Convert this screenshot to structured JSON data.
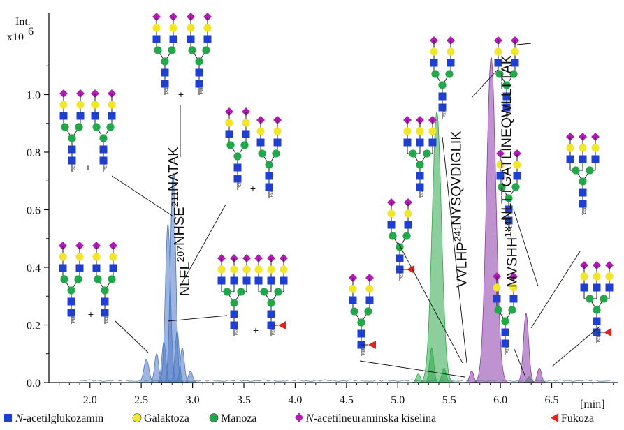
{
  "chart_data": {
    "type": "area",
    "ylabel_line1": "Int.",
    "ylabel_line2": "x10",
    "ylabel_exp": "6",
    "xunit": "[min]",
    "xlim": [
      1.6,
      7.15
    ],
    "ylim": [
      0,
      1.28
    ],
    "xticks": [
      2.0,
      2.5,
      3.0,
      3.5,
      4.0,
      4.5,
      5.0,
      5.5,
      6.0,
      6.5
    ],
    "xtick_labels": [
      "2.0",
      "2.5",
      "3.0",
      "3.5",
      "4.0",
      "4.5",
      "5.0",
      "5.5",
      "6.0",
      "6.5"
    ],
    "yticks": [
      0.0,
      0.2,
      0.4,
      0.6,
      0.8,
      1.0
    ],
    "ytick_labels": [
      "0.0",
      "0.2",
      "0.4",
      "0.6",
      "0.8",
      "1.0"
    ],
    "series": [
      {
        "color": "#4f78c4",
        "peaks": [
          {
            "rt": 2.76,
            "height": 0.55,
            "width": 0.025
          },
          {
            "rt": 2.81,
            "height": 0.73,
            "width": 0.025
          },
          {
            "rt": 2.72,
            "height": 0.14,
            "width": 0.02
          },
          {
            "rt": 2.65,
            "height": 0.1,
            "width": 0.02
          },
          {
            "rt": 2.55,
            "height": 0.08,
            "width": 0.025
          },
          {
            "rt": 2.85,
            "height": 0.18,
            "width": 0.02
          },
          {
            "rt": 2.9,
            "height": 0.12,
            "width": 0.02
          },
          {
            "rt": 2.98,
            "height": 0.04,
            "width": 0.02
          }
        ]
      },
      {
        "color": "#2ea84a",
        "peaks": [
          {
            "rt": 5.38,
            "height": 0.94,
            "width": 0.045
          },
          {
            "rt": 5.33,
            "height": 0.12,
            "width": 0.02
          },
          {
            "rt": 5.45,
            "height": 0.05,
            "width": 0.02
          },
          {
            "rt": 5.2,
            "height": 0.03,
            "width": 0.02
          },
          {
            "rt": 6.28,
            "height": 0.02,
            "width": 0.02
          }
        ]
      },
      {
        "color": "#8a3aa8",
        "peaks": [
          {
            "rt": 5.91,
            "height": 1.13,
            "width": 0.045
          },
          {
            "rt": 6.25,
            "height": 0.24,
            "width": 0.025
          },
          {
            "rt": 5.72,
            "height": 0.04,
            "width": 0.02
          },
          {
            "rt": 6.38,
            "height": 0.05,
            "width": 0.02
          }
        ]
      }
    ],
    "peptide_labels": [
      {
        "pre": "NLFL",
        "sup1": "207",
        "mid": "NHSE",
        "sup2": "211",
        "post": "NATAK",
        "x": 2.97,
        "y": 0.3
      },
      {
        "pre": "VVLHP",
        "sup1": "241",
        "mid": "NYSQVDIGLIK",
        "sup2": "",
        "post": "",
        "x": 5.67,
        "y": 0.33
      },
      {
        "pre": "MVSHH",
        "sup1": "184",
        "mid": "NLTTGATLINEQWLLTTAK",
        "sup2": "",
        "post": "",
        "x": 6.16,
        "y": 0.33
      }
    ]
  },
  "legend": {
    "items": [
      {
        "symbol": "square",
        "color": "#1f3fd1",
        "italic_prefix": "N",
        "text": "-acetilglukozamin"
      },
      {
        "symbol": "circle",
        "color": "#f2e62a",
        "italic_prefix": "",
        "text": "Galaktoza"
      },
      {
        "symbol": "circle",
        "color": "#22a84a",
        "italic_prefix": "",
        "text": "Manoza"
      },
      {
        "symbol": "diamond",
        "color": "#b21ab5",
        "italic_prefix": "N",
        "text": "-acetilneuraminska kiselina"
      },
      {
        "symbol": "triangle",
        "color": "#e0241d",
        "italic_prefix": "",
        "text": "Fukoza"
      }
    ]
  },
  "glycan_label": "PEP",
  "colors": {
    "glcnac": "#1f3fd1",
    "galactose": "#f2e62a",
    "mannose": "#22a84a",
    "sialic": "#b21ab5",
    "fucose": "#e0241d"
  }
}
